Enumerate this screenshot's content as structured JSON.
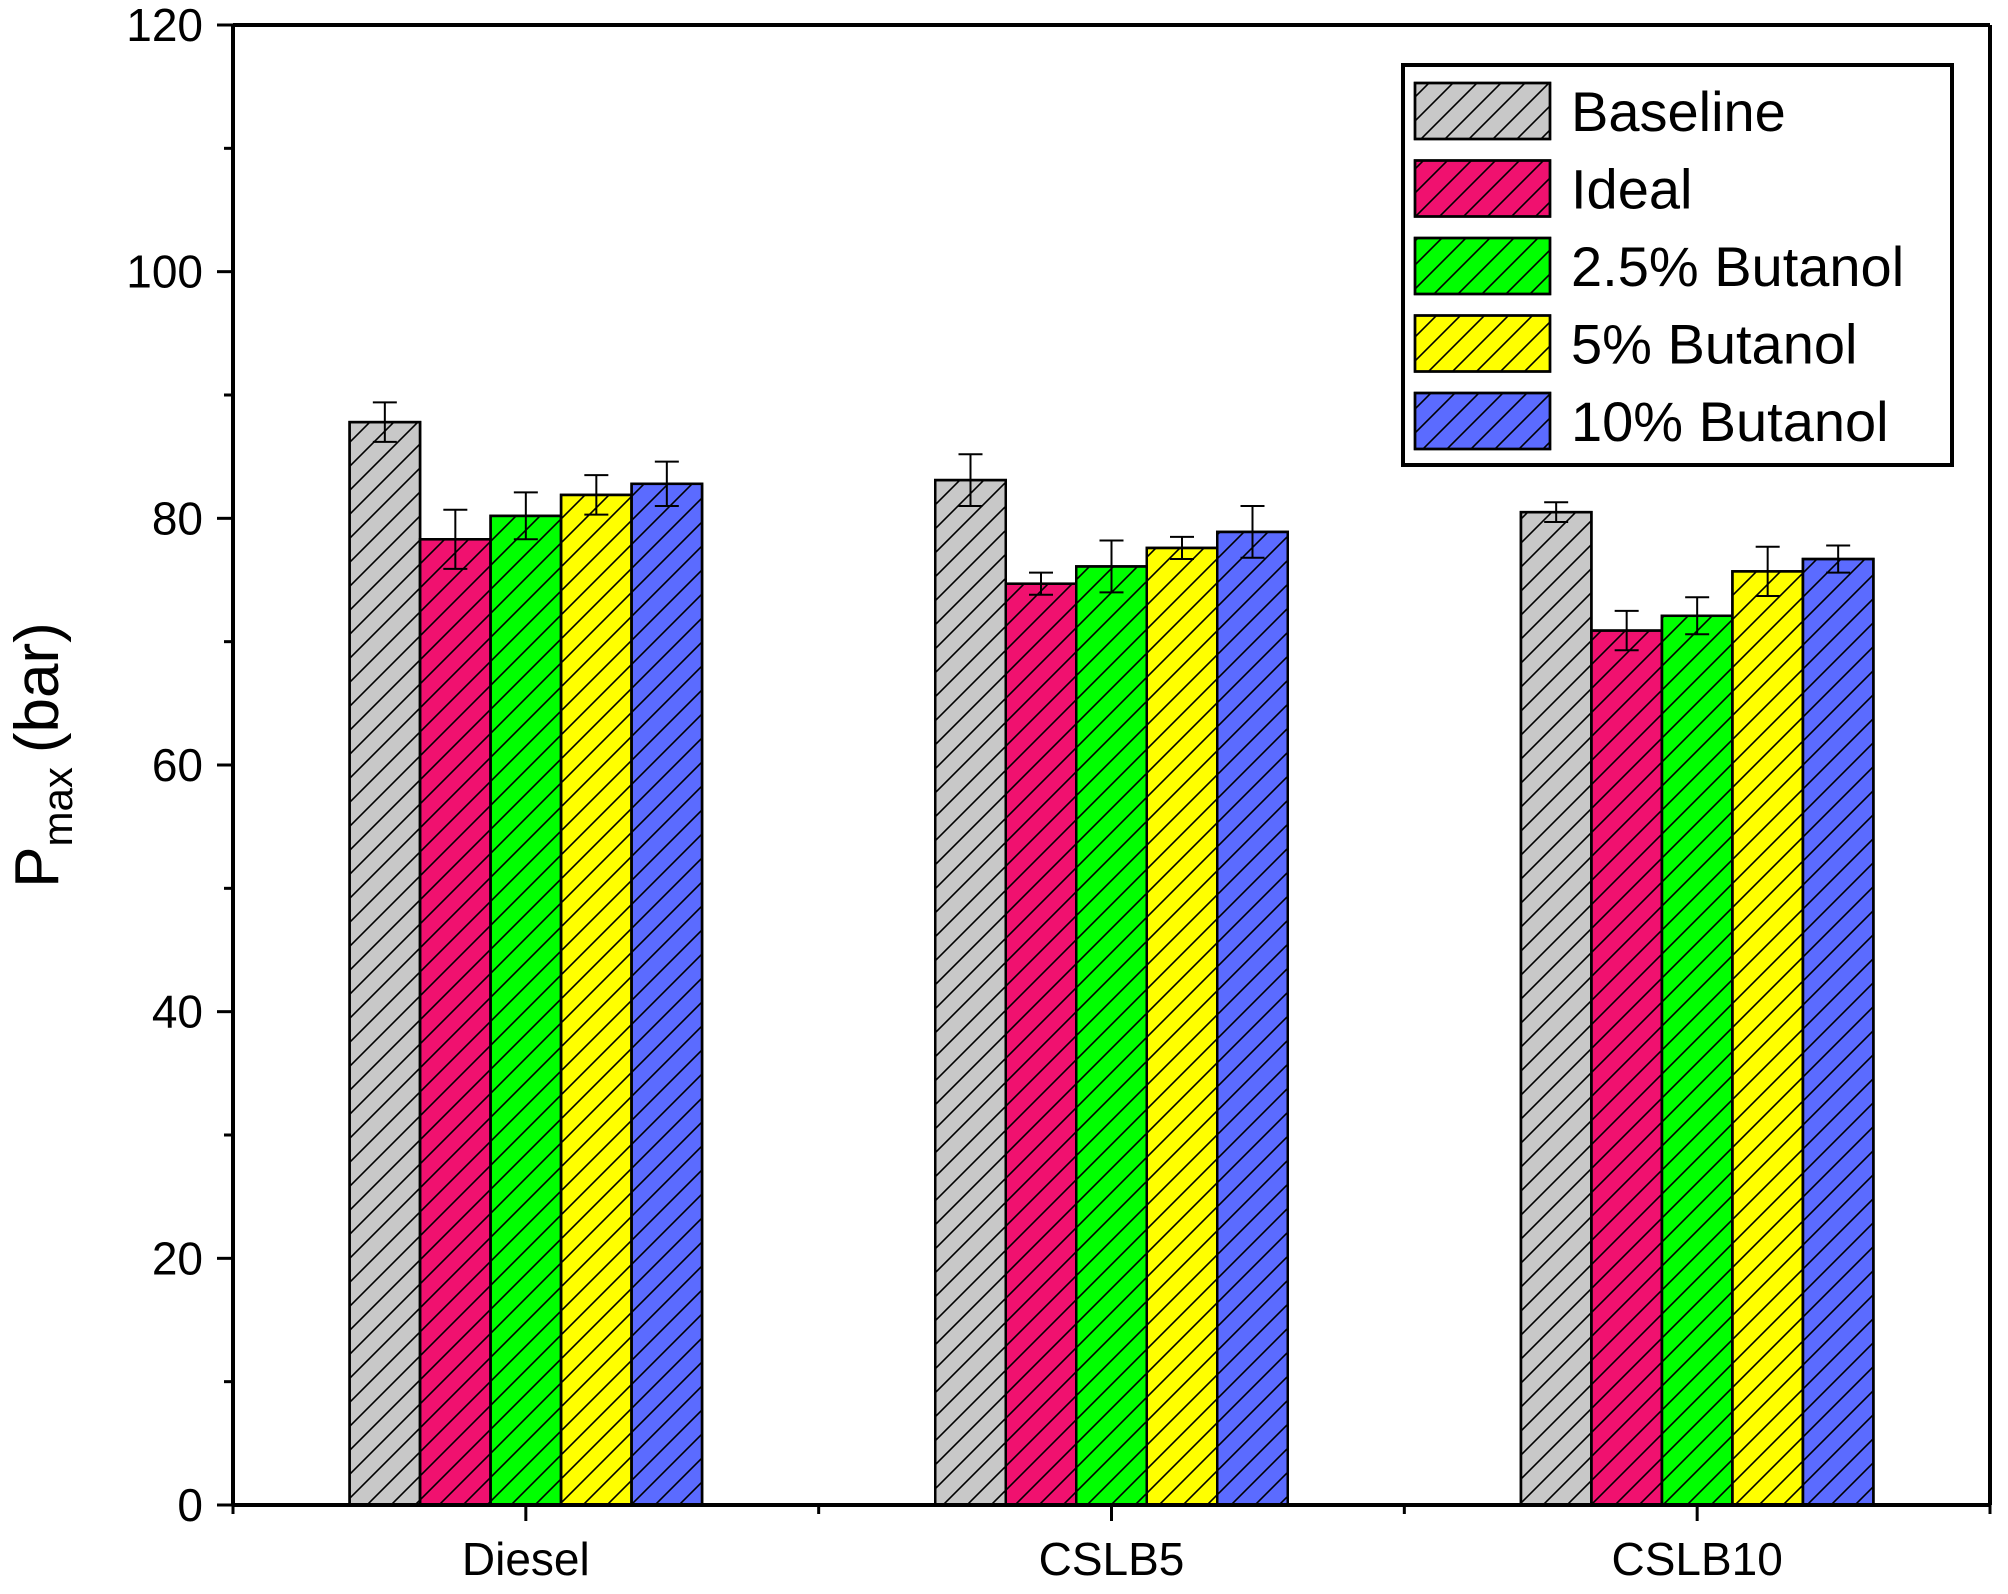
{
  "chart_data": {
    "type": "bar",
    "title": "",
    "xlabel": "",
    "ylabel": "P",
    "ylabel_subscript": "max",
    "ylabel_unit": "(bar)",
    "ylim": [
      0,
      120
    ],
    "yticks": [
      0,
      20,
      40,
      60,
      80,
      100,
      120
    ],
    "categories": [
      "Diesel",
      "CSLB5",
      "CSLB10"
    ],
    "legend_position": "top-right",
    "series": [
      {
        "name": "Baseline",
        "color": "#c8c8c8",
        "values": [
          87.8,
          83.1,
          80.5
        ],
        "errors": [
          1.6,
          2.1,
          0.8
        ]
      },
      {
        "name": "Ideal",
        "color": "#f0116f",
        "values": [
          78.3,
          74.7,
          70.9
        ],
        "errors": [
          2.4,
          0.9,
          1.6
        ]
      },
      {
        "name": "2.5% Butanol",
        "color": "#00ff00",
        "values": [
          80.2,
          76.1,
          72.1
        ],
        "errors": [
          1.9,
          2.1,
          1.5
        ]
      },
      {
        "name": "5% Butanol",
        "color": "#ffff00",
        "values": [
          81.9,
          77.6,
          75.7
        ],
        "errors": [
          1.6,
          0.9,
          2.0
        ]
      },
      {
        "name": "10% Butanol",
        "color": "#5b6bff",
        "values": [
          82.8,
          78.9,
          76.7
        ],
        "errors": [
          1.8,
          2.1,
          1.1
        ]
      }
    ]
  }
}
